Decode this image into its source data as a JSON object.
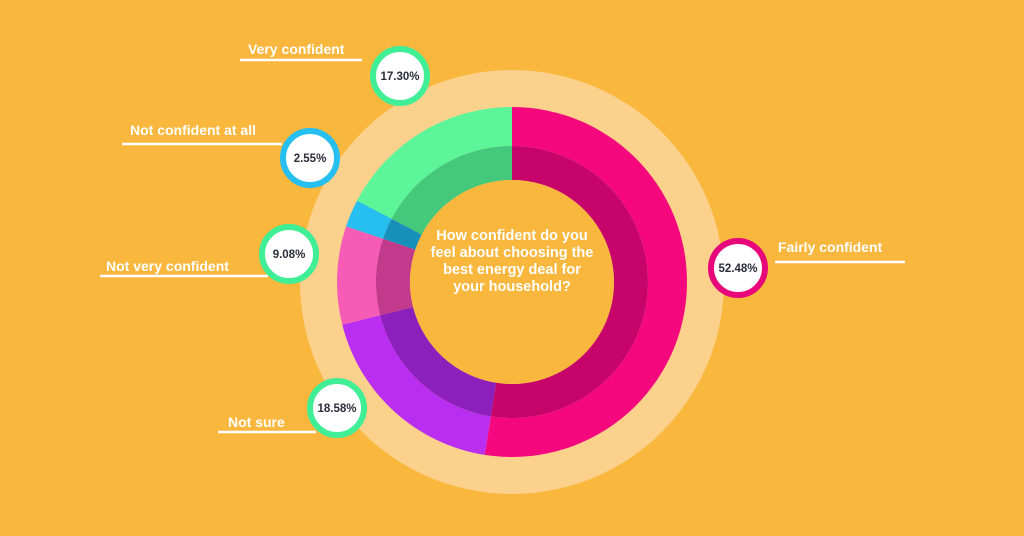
{
  "chart_data": {
    "type": "pie",
    "variant": "donut",
    "title": "How confident do you\nfeel about choosing the\nbest energy deal for\nyour household?",
    "start_angle_deg": 0,
    "direction": "clockwise",
    "slices": [
      {
        "label": "Fairly confident",
        "value": 52.48,
        "value_label": "52.48%",
        "color": "#f5087e",
        "inner_color": "#c6046a",
        "ring_color": "#e8077a"
      },
      {
        "label": "Not sure",
        "value": 18.58,
        "value_label": "18.58%",
        "color": "#b92ef0",
        "inner_color": "#8d1fbd",
        "ring_color": "#40ee96"
      },
      {
        "label": "Not very confident",
        "value": 9.08,
        "value_label": "9.08%",
        "color": "#f65cb6",
        "inner_color": "#c23a8c",
        "ring_color": "#40ee96"
      },
      {
        "label": "Not confident at all",
        "value": 2.55,
        "value_label": "2.55%",
        "color": "#27bff0",
        "inner_color": "#1790bb",
        "ring_color": "#27bff0"
      },
      {
        "label": "Very confident",
        "value": 17.3,
        "value_label": "17.30%",
        "color": "#5cf59a",
        "inner_color": "#43c87c",
        "ring_color": "#40ee96"
      }
    ],
    "background_color": "#f9b73e",
    "halo_color": "#fbd18c",
    "legend": "none"
  }
}
